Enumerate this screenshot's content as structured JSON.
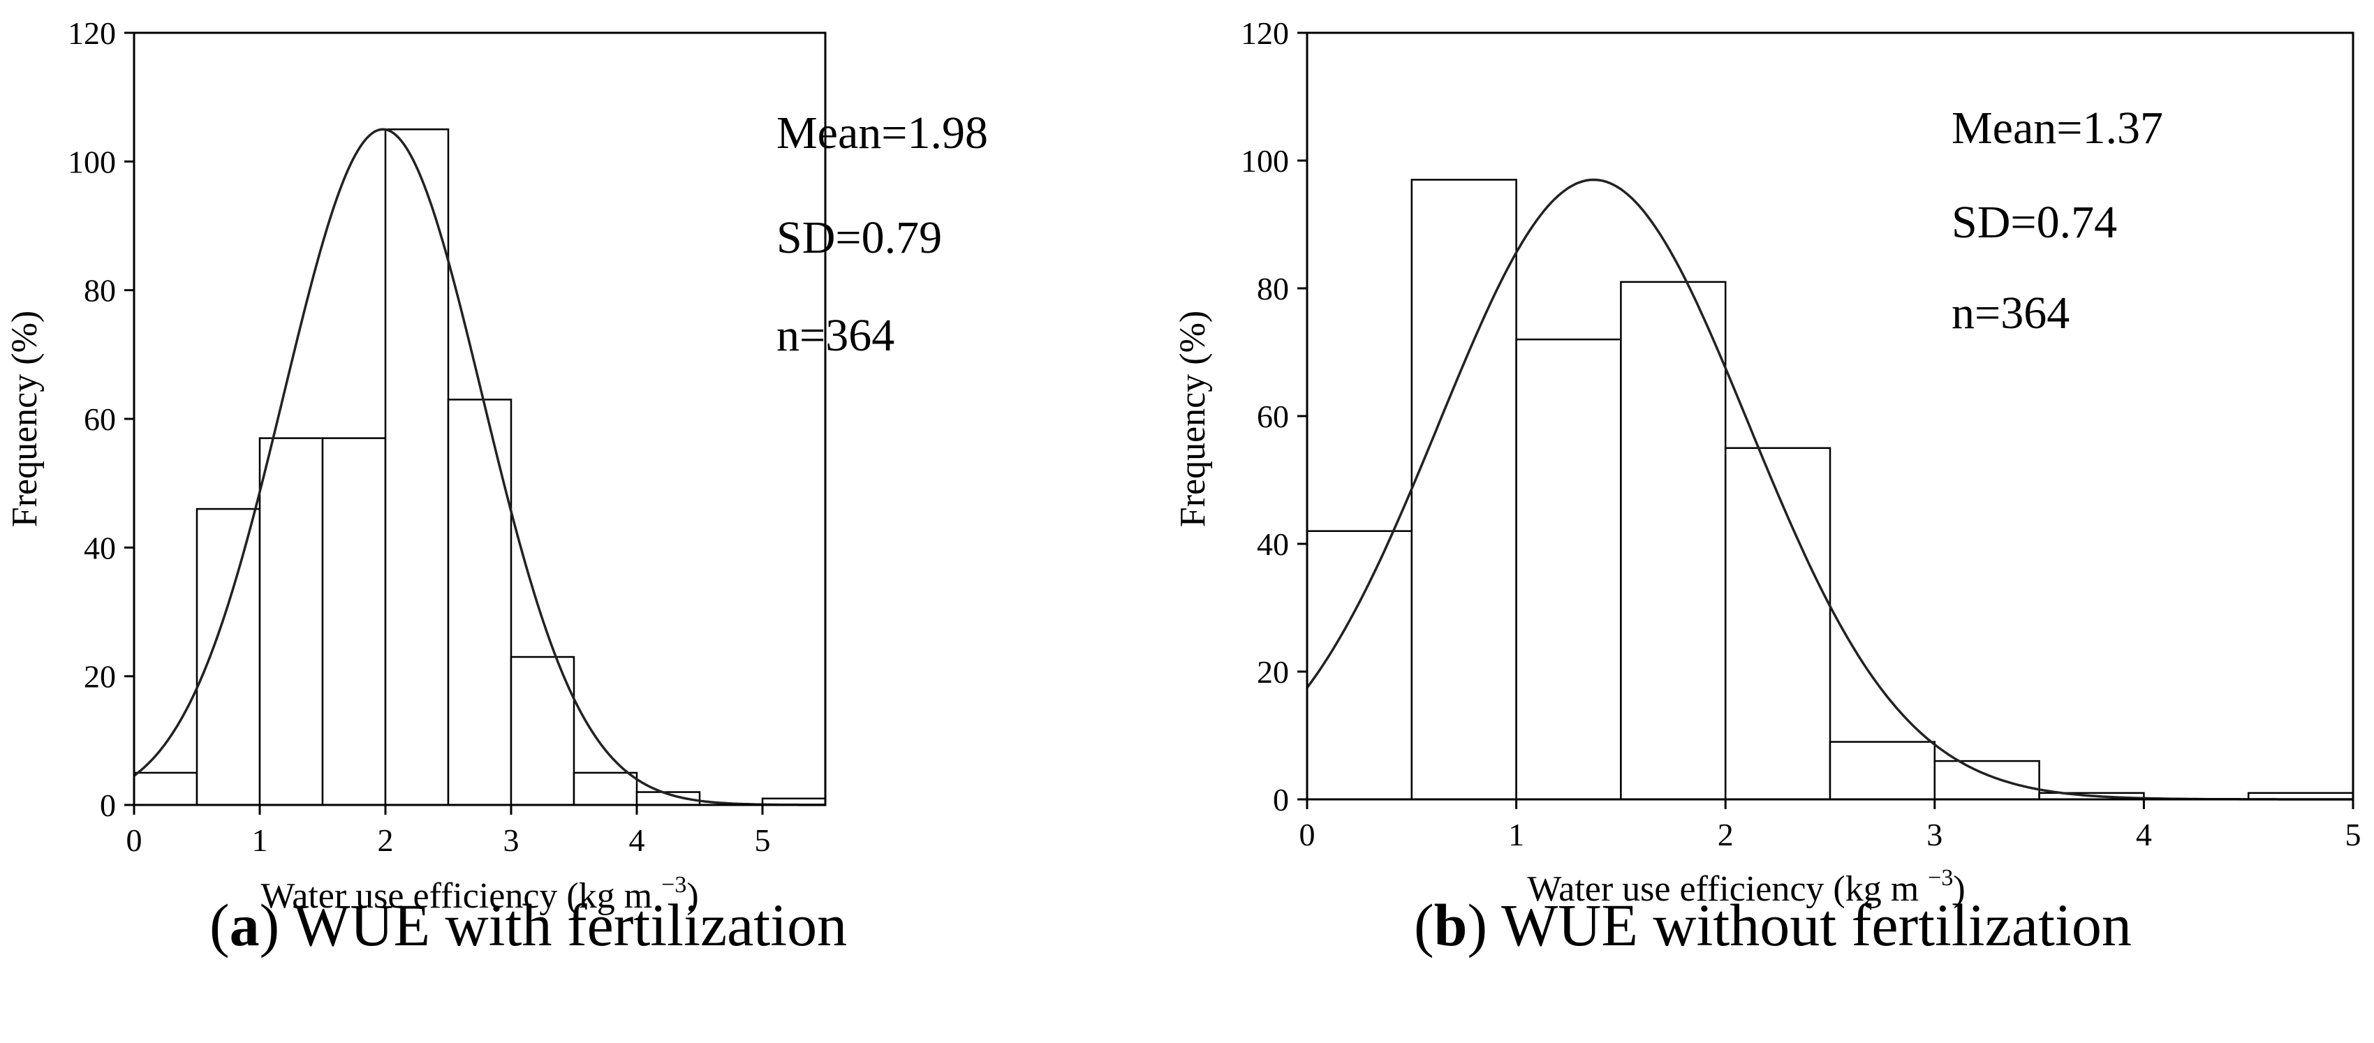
{
  "chart_data": [
    {
      "type": "histogram",
      "panel_label": "a",
      "caption": "WUE with fertilization",
      "xlabel": "Water use efficiency (kg m",
      "xlabel_sup": "−3",
      "xlabel_end": ")",
      "ylabel": "Frequency (%)",
      "xlim": [
        0,
        5.5
      ],
      "ylim": [
        0,
        120
      ],
      "xticks": [
        0,
        1,
        2,
        3,
        4,
        5
      ],
      "yticks": [
        0,
        20,
        40,
        60,
        80,
        100,
        120
      ],
      "bin_width": 0.5,
      "bins": [
        {
          "start": 0.0,
          "value": 5
        },
        {
          "start": 0.5,
          "value": 46
        },
        {
          "start": 1.0,
          "value": 57
        },
        {
          "start": 1.5,
          "value": 57
        },
        {
          "start": 2.0,
          "value": 105
        },
        {
          "start": 2.5,
          "value": 63
        },
        {
          "start": 3.0,
          "value": 23
        },
        {
          "start": 3.5,
          "value": 5
        },
        {
          "start": 4.0,
          "value": 2
        },
        {
          "start": 4.5,
          "value": 0
        },
        {
          "start": 5.0,
          "value": 1
        }
      ],
      "normal_fit": {
        "mean": 1.98,
        "sd": 0.79,
        "peak": 105
      },
      "annotations": [
        "Mean=1.98",
        "SD=0.79",
        "n=364"
      ]
    },
    {
      "type": "histogram",
      "panel_label": "b",
      "caption": "WUE without fertilization",
      "xlabel": "Water use efficiency (kg m",
      "xlabel_sup": "−3",
      "xlabel_end": ")",
      "ylabel": "Frequency (%)",
      "xlim": [
        0,
        5
      ],
      "ylim": [
        0,
        120
      ],
      "xticks": [
        0,
        1,
        2,
        3,
        4,
        5
      ],
      "yticks": [
        0,
        20,
        40,
        60,
        80,
        100,
        120
      ],
      "bin_width": 0.5,
      "bins": [
        {
          "start": 0.0,
          "value": 42
        },
        {
          "start": 0.5,
          "value": 97
        },
        {
          "start": 1.0,
          "value": 72
        },
        {
          "start": 1.5,
          "value": 81
        },
        {
          "start": 2.0,
          "value": 55
        },
        {
          "start": 2.5,
          "value": 9
        },
        {
          "start": 3.0,
          "value": 6
        },
        {
          "start": 3.5,
          "value": 1
        },
        {
          "start": 4.0,
          "value": 0
        },
        {
          "start": 4.5,
          "value": 1
        }
      ],
      "normal_fit": {
        "mean": 1.37,
        "sd": 0.74,
        "peak": 97
      },
      "annotations": [
        "Mean=1.37",
        "SD=0.74",
        "n=364"
      ]
    }
  ]
}
